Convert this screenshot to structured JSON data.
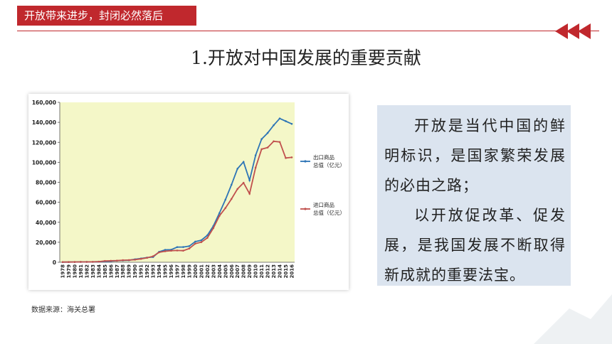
{
  "header": {
    "section_label": "开放带来进步，封闭必然落后",
    "accent_color": "#c0282d",
    "nav_icon": "double-left-arrow-icon"
  },
  "slide": {
    "title": "1.开放对中国发展的重要贡献"
  },
  "text_panel": {
    "paragraph_1": "开放是当代中国的鲜明标识，是国家繁荣发展的必由之路；",
    "paragraph_2": "以开放促改革、促发展，是我国发展不断取得新成就的重要法宝。",
    "background_color": "#dbe4ef"
  },
  "source_note": "数据来源：海关总署",
  "chart_data": {
    "type": "line",
    "title": "",
    "xlabel": "",
    "ylabel": "",
    "x": [
      "1978",
      "1979",
      "1980",
      "1981",
      "1982",
      "1983",
      "1984",
      "1985",
      "1986",
      "1987",
      "1988",
      "1989",
      "1990",
      "1991",
      "1992",
      "1993",
      "1994",
      "1995",
      "1996",
      "1997",
      "1998",
      "1999",
      "2000",
      "2001",
      "2002",
      "2003",
      "2004",
      "2005",
      "2006",
      "2007",
      "2008",
      "2009",
      "2010",
      "2011",
      "2012",
      "2013",
      "2014",
      "2015",
      "2016"
    ],
    "yticks": [
      "0",
      "20,000",
      "40,000",
      "60,000",
      "80,000",
      "100,000",
      "120,000",
      "140,000",
      "160,000"
    ],
    "ylim": [
      0,
      160000
    ],
    "grid": false,
    "legend_position": "right",
    "plot_background": "#f4f7c8",
    "series": [
      {
        "name": "出口商品总值（亿元）",
        "color": "#2e75b6",
        "values": [
          168,
          212,
          271,
          368,
          414,
          438,
          581,
          809,
          1082,
          1470,
          1767,
          1956,
          2986,
          3827,
          4676,
          5285,
          10422,
          12452,
          12576,
          15161,
          15224,
          16160,
          20634,
          22024,
          26948,
          36288,
          49103,
          62648,
          77598,
          93563,
          100395,
          82030,
          107023,
          123241,
          129359,
          137131,
          143884,
          141167,
          138455
        ]
      },
      {
        "name": "进口商品总值（亿元）",
        "color": "#c0504d",
        "values": [
          187,
          243,
          299,
          368,
          358,
          422,
          621,
          1258,
          1498,
          1614,
          2055,
          2200,
          2574,
          3399,
          4443,
          5986,
          9960,
          11048,
          11557,
          11807,
          11626,
          13736,
          18639,
          20159,
          24430,
          34196,
          46436,
          54274,
          63377,
          73301,
          79527,
          68618,
          94700,
          113161,
          114801,
          121037,
          120358,
          104336,
          104967
        ]
      }
    ]
  }
}
